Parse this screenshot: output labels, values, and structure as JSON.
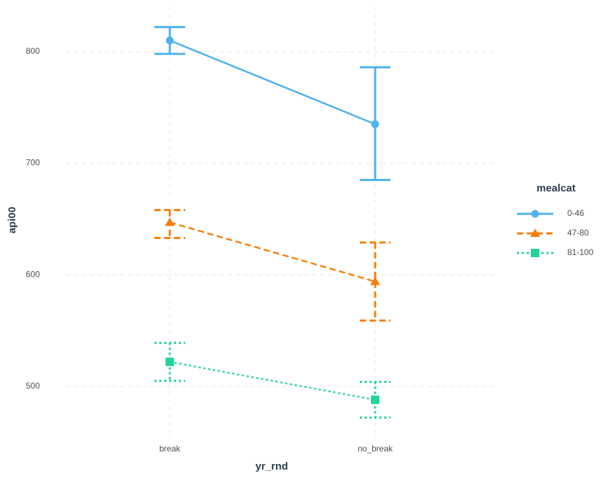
{
  "chart_data": {
    "type": "line",
    "x_label": "yr_rnd",
    "y_label": "api00",
    "categories": [
      "break",
      "no_break"
    ],
    "series": [
      {
        "name": "0-46",
        "color": "#4eb1ef",
        "dash": "solid",
        "marker": "circle",
        "values": [
          810,
          735
        ],
        "error_low": [
          798,
          685
        ],
        "error_high": [
          822,
          786
        ]
      },
      {
        "name": "47-80",
        "color": "#f57f0a",
        "dash": "dashed",
        "marker": "triangle",
        "values": [
          647,
          594
        ],
        "error_low": [
          633,
          559
        ],
        "error_high": [
          658,
          629
        ]
      },
      {
        "name": "81-100",
        "color": "#1fd598",
        "dash": "dotted",
        "marker": "square",
        "values": [
          522,
          488
        ],
        "error_low": [
          505,
          472
        ],
        "error_high": [
          539,
          504
        ]
      }
    ],
    "legend_title": "mealcat",
    "legend": "right",
    "ylim": [
      453,
      840
    ],
    "yticks": [
      500,
      600,
      700,
      800
    ],
    "grid": true
  }
}
